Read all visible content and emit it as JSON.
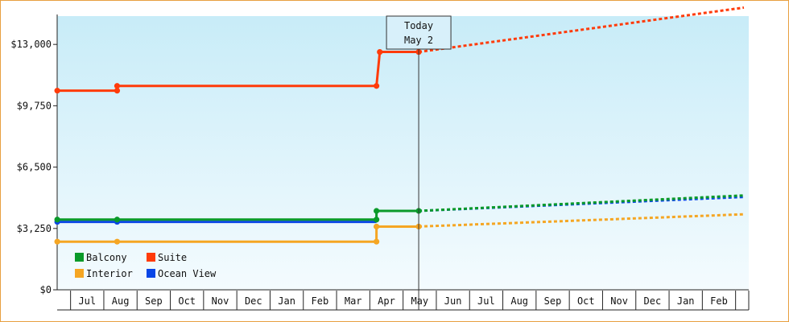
{
  "chart_data": {
    "type": "line",
    "title": "",
    "xlabel": "",
    "ylabel": "",
    "ylim": [
      0,
      14500
    ],
    "y_ticks": [
      0,
      3250,
      6500,
      9750,
      13000
    ],
    "y_tick_labels": [
      "$0",
      "$3,250",
      "$6,500",
      "$9,750",
      "$13,000"
    ],
    "x_start_month": 6,
    "x_range": [
      "Jun",
      "Mar (2nd year)"
    ],
    "month_labels": [
      "Jul",
      "Aug",
      "Sep",
      "Oct",
      "Nov",
      "Dec",
      "Jan",
      "Feb",
      "Mar",
      "Apr",
      "May",
      "Jun",
      "Jul",
      "Aug",
      "Sep",
      "Oct",
      "Nov",
      "Dec",
      "Jan",
      "Feb"
    ],
    "grid": false,
    "legend_position": "bottom-left",
    "today": {
      "line1": "Today",
      "line2": "May 2",
      "x": 10.97
    },
    "projection_end_x": 20.75,
    "series": [
      {
        "name": "Suite",
        "color": "#ff3b0a",
        "actual": [
          [
            0.1,
            10550
          ],
          [
            1.9,
            10550
          ],
          [
            1.9,
            10800
          ],
          [
            9.7,
            10800
          ],
          [
            9.8,
            12600
          ],
          [
            10.97,
            12600
          ]
        ],
        "markers": [
          [
            0.1,
            10550
          ],
          [
            1.9,
            10550
          ],
          [
            1.9,
            10800
          ],
          [
            9.7,
            10800
          ],
          [
            9.8,
            12600
          ],
          [
            10.97,
            12600
          ]
        ],
        "projected_end": 14950
      },
      {
        "name": "Balcony",
        "color": "#0a9a2a",
        "actual": [
          [
            0.1,
            3720
          ],
          [
            1.9,
            3720
          ],
          [
            9.7,
            3720
          ],
          [
            9.7,
            4180
          ],
          [
            10.97,
            4180
          ]
        ],
        "markers": [
          [
            0.1,
            3720
          ],
          [
            1.9,
            3720
          ],
          [
            9.7,
            3720
          ],
          [
            9.7,
            4180
          ],
          [
            10.97,
            4180
          ]
        ],
        "projected_end": 5000
      },
      {
        "name": "Ocean View",
        "color": "#0a46e6",
        "actual": [
          [
            0.1,
            3600
          ],
          [
            1.9,
            3600
          ],
          [
            9.7,
            3600
          ]
        ],
        "markers": [
          [
            0.1,
            3600
          ],
          [
            1.9,
            3600
          ]
        ],
        "projected_from": [
          10.97,
          4180
        ],
        "projected_end": 4920
      },
      {
        "name": "Interior",
        "color": "#f5a623",
        "actual": [
          [
            0.1,
            2550
          ],
          [
            1.9,
            2550
          ],
          [
            9.7,
            2550
          ],
          [
            9.7,
            3350
          ],
          [
            10.97,
            3350
          ]
        ],
        "markers": [
          [
            0.1,
            2550
          ],
          [
            1.9,
            2550
          ],
          [
            9.7,
            2550
          ],
          [
            9.7,
            3350
          ],
          [
            10.97,
            3350
          ]
        ],
        "projected_end": 4000
      }
    ],
    "legend": [
      {
        "name": "Balcony",
        "color": "#0a9a2a"
      },
      {
        "name": "Suite",
        "color": "#ff3b0a"
      },
      {
        "name": "Interior",
        "color": "#f5a623"
      },
      {
        "name": "Ocean View",
        "color": "#0a46e6"
      }
    ]
  }
}
